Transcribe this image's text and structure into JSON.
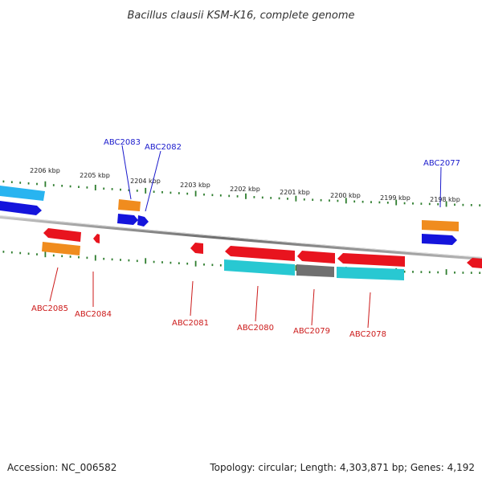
{
  "title": "Bacillus clausii KSM-K16, complete genome",
  "footer": {
    "accession": "Accession: NC_006582",
    "summary": "Topology: circular; Length: 4,303,871 bp; Genes: 4,192"
  },
  "scale": {
    "kbp_labels": [
      "2206 kbp",
      "2205 kbp",
      "2204 kbp",
      "2203 kbp",
      "2202 kbp",
      "2201 kbp",
      "2200 kbp",
      "2199 kbp",
      "2198 kbp"
    ]
  },
  "colors": {
    "backbone": "#8a8a8a",
    "tick": "#2e7d2e",
    "forward_label": "#1a1acc",
    "reverse_label": "#cc1a1a",
    "cds_red": "#e8141e",
    "cds_orange": "#f08c1e",
    "cds_blue": "#1414dc",
    "cds_cyan": "#28c8d2",
    "cds_light_blue": "#28b4f0",
    "cds_gray": "#707070"
  },
  "gene_labels": {
    "forward": [
      "ABC2083",
      "ABC2082",
      "ABC2077"
    ],
    "reverse": [
      "ABC2085",
      "ABC2084",
      "ABC2081",
      "ABC2080",
      "ABC2079",
      "ABC2078"
    ]
  }
}
